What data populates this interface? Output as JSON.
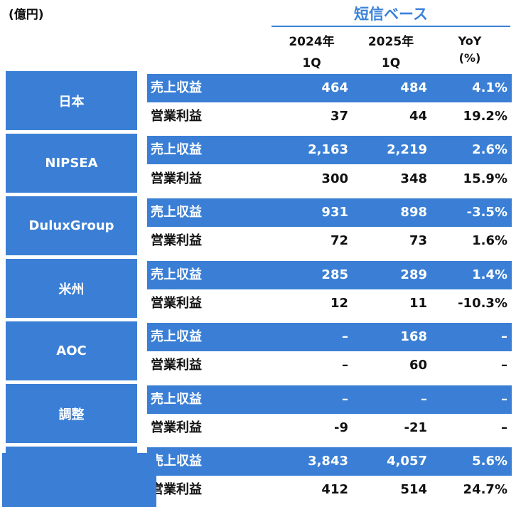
{
  "header": {
    "unit": "(億円)",
    "basis": "短信ベース",
    "col1_year": "2024年",
    "col1_q": "1Q",
    "col2_year": "2025年",
    "col2_q": "1Q",
    "col3_a": "YoY",
    "col3_b": "(%)"
  },
  "segments": [
    {
      "name": "日本",
      "rev": {
        "label": "売上収益",
        "v1": "464",
        "v2": "484",
        "v3": "4.1%"
      },
      "op": {
        "label": "営業利益",
        "v1": "37",
        "v2": "44",
        "v3": "19.2%"
      }
    },
    {
      "name": "NIPSEA",
      "rev": {
        "label": "売上収益",
        "v1": "2,163",
        "v2": "2,219",
        "v3": "2.6%"
      },
      "op": {
        "label": "営業利益",
        "v1": "300",
        "v2": "348",
        "v3": "15.9%"
      }
    },
    {
      "name": "DuluxGroup",
      "rev": {
        "label": "売上収益",
        "v1": "931",
        "v2": "898",
        "v3": "-3.5%"
      },
      "op": {
        "label": "営業利益",
        "v1": "72",
        "v2": "73",
        "v3": "1.6%"
      }
    },
    {
      "name": "米州",
      "rev": {
        "label": "売上収益",
        "v1": "285",
        "v2": "289",
        "v3": "1.4%"
      },
      "op": {
        "label": "営業利益",
        "v1": "12",
        "v2": "11",
        "v3": "-10.3%"
      }
    },
    {
      "name": "AOC",
      "rev": {
        "label": "売上収益",
        "v1": "–",
        "v2": "168",
        "v3": "–"
      },
      "op": {
        "label": "営業利益",
        "v1": "–",
        "v2": "60",
        "v3": "–"
      }
    },
    {
      "name": "調整",
      "rev": {
        "label": "売上収益",
        "v1": "–",
        "v2": "–",
        "v3": "–"
      },
      "op": {
        "label": "営業利益",
        "v1": "-9",
        "v2": "-21",
        "v3": "–"
      }
    },
    {
      "name": "",
      "rev": {
        "label": "売上収益",
        "v1": "3,843",
        "v2": "4,057",
        "v3": "5.6%"
      },
      "op": {
        "label": "営業利益",
        "v1": "412",
        "v2": "514",
        "v3": "24.7%"
      }
    }
  ],
  "colors": {
    "accent": "#3a7fd5",
    "title_blue": "#3b82d9"
  }
}
